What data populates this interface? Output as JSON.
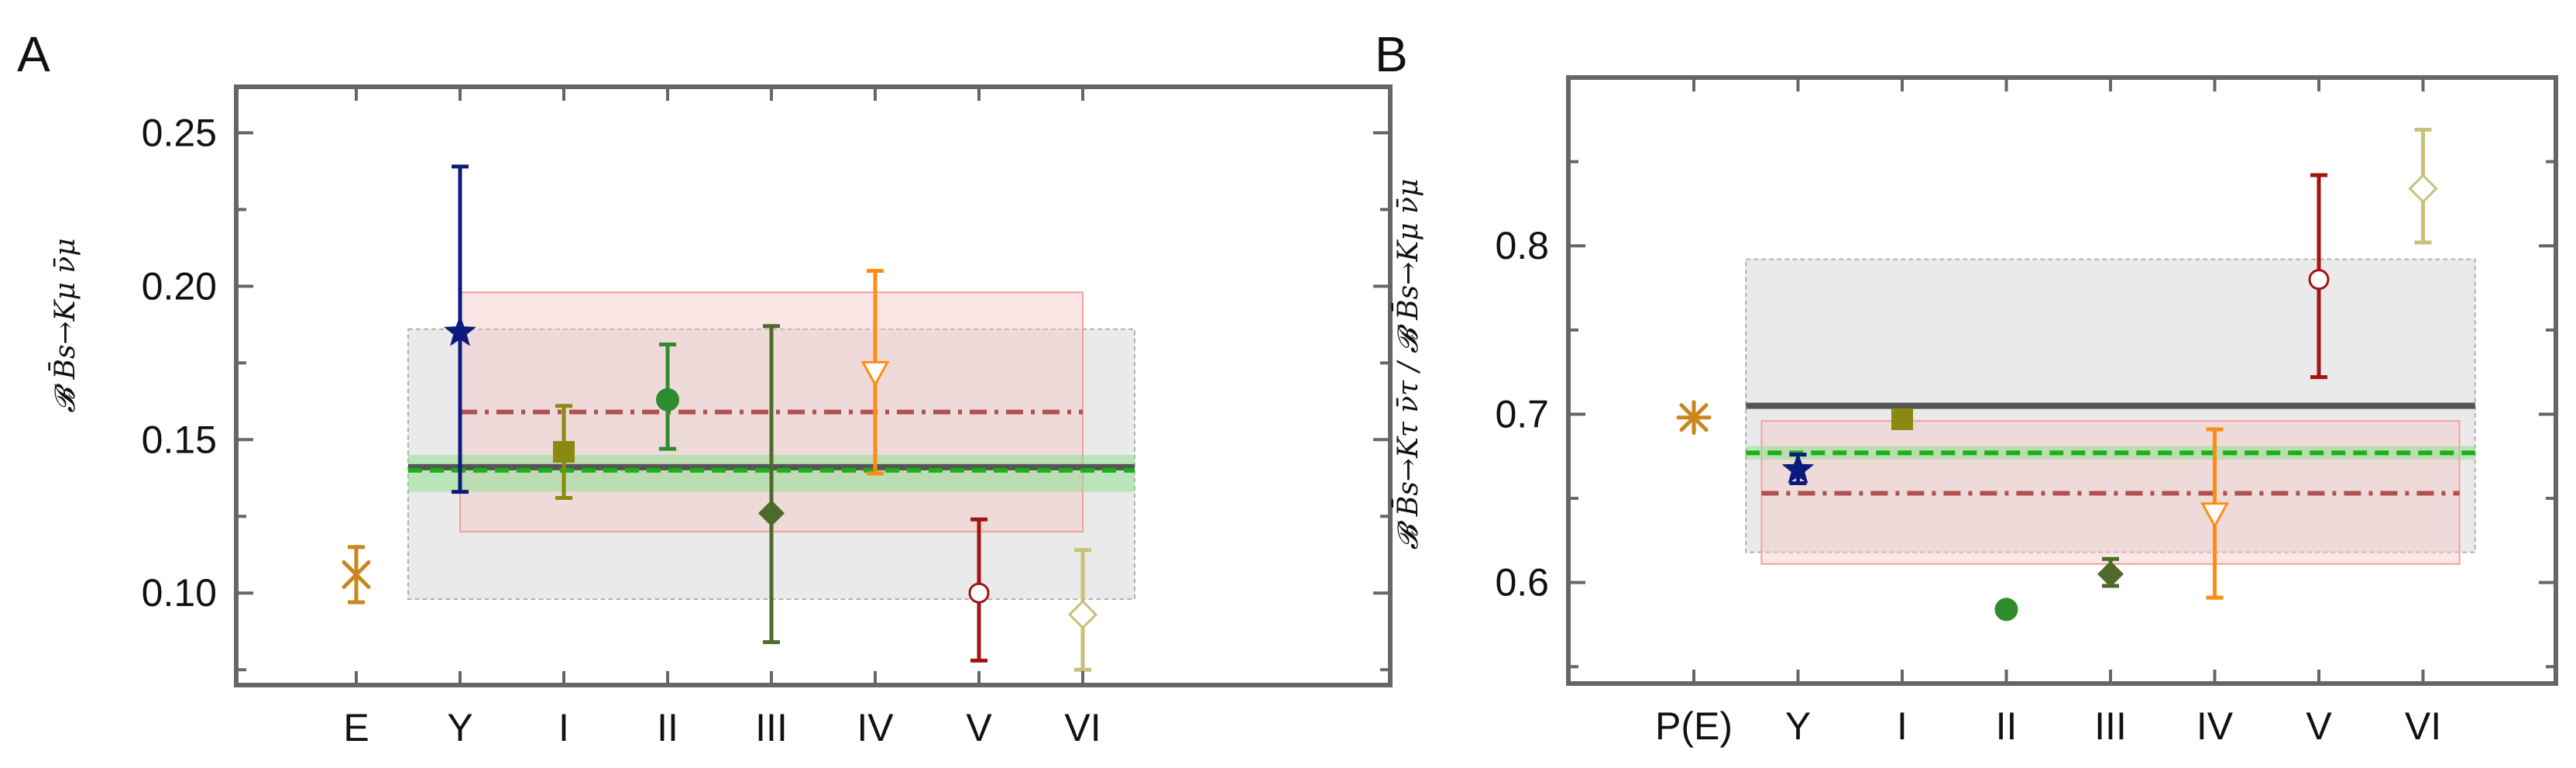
{
  "chart_data": [
    {
      "panel_label": "A",
      "type": "scatter",
      "title": "",
      "ylabel": "𝓑 B̄s→Kμ ν̄μ",
      "ylim": [
        0.07,
        0.265
      ],
      "yticks": [
        0.1,
        0.15,
        0.2,
        0.25
      ],
      "ytick_labels": [
        "0.10",
        "0.15",
        "0.20",
        "0.25"
      ],
      "categories": [
        "E",
        "Y",
        "I",
        "II",
        "III",
        "IV",
        "V",
        "VI"
      ],
      "points": [
        {
          "label": "E",
          "value": 0.106,
          "lo": 0.097,
          "hi": 0.115,
          "marker": "x",
          "color": "#c8861e"
        },
        {
          "label": "Y",
          "value": 0.185,
          "lo": 0.133,
          "hi": 0.239,
          "marker": "star",
          "color": "#0c1a7c"
        },
        {
          "label": "I",
          "value": 0.146,
          "lo": 0.131,
          "hi": 0.161,
          "marker": "square",
          "color": "#8a8a10"
        },
        {
          "label": "II",
          "value": 0.163,
          "lo": 0.147,
          "hi": 0.181,
          "marker": "circle",
          "color": "#2e8b2e"
        },
        {
          "label": "III",
          "value": 0.126,
          "lo": 0.084,
          "hi": 0.187,
          "marker": "diamond",
          "color": "#4e6a2a"
        },
        {
          "label": "IV",
          "value": 0.172,
          "lo": 0.139,
          "hi": 0.205,
          "marker": "triangle-open",
          "color": "#ff8c10"
        },
        {
          "label": "V",
          "value": 0.1,
          "lo": 0.078,
          "hi": 0.124,
          "marker": "circle-open",
          "color": "#a01414"
        },
        {
          "label": "VI",
          "value": 0.093,
          "lo": 0.075,
          "hi": 0.114,
          "marker": "diamond-open",
          "color": "#c6c27a"
        }
      ],
      "bands": [
        {
          "name": "gray",
          "center": 0.141,
          "lo": 0.098,
          "hi": 0.186,
          "from": "Y-0.5",
          "to": "VI+0.5",
          "style": "solid",
          "color": "#555555",
          "fill": "#d9d9d9"
        },
        {
          "name": "red",
          "center": 0.159,
          "lo": 0.12,
          "hi": 0.198,
          "from": "Y",
          "to": "VI",
          "style": "dashdot",
          "color": "#b05050",
          "fill": "#f7c8c8"
        },
        {
          "name": "green",
          "center": 0.14,
          "lo": 0.133,
          "hi": 0.145,
          "from": "Y-0.5",
          "to": "VI+0.5",
          "style": "dashed",
          "color": "#1ab01a",
          "fill": "#8fe08f"
        }
      ]
    },
    {
      "panel_label": "B",
      "type": "scatter",
      "title": "",
      "ylabel": "𝓑 B̄s→Kτ ν̄τ / 𝓑 B̄s→Kμ ν̄μ",
      "ylim": [
        0.54,
        0.9
      ],
      "yticks": [
        0.6,
        0.7,
        0.8
      ],
      "ytick_labels": [
        "0.6",
        "0.7",
        "0.8"
      ],
      "categories": [
        "P(E)",
        "Y",
        "I",
        "II",
        "III",
        "IV",
        "V",
        "VI"
      ],
      "points": [
        {
          "label": "P(E)",
          "value": 0.698,
          "lo": null,
          "hi": null,
          "marker": "x-star",
          "color": "#c8861e"
        },
        {
          "label": "Y",
          "value": 0.667,
          "lo": 0.659,
          "hi": 0.676,
          "marker": "star",
          "color": "#0c1a7c"
        },
        {
          "label": "I",
          "value": 0.697,
          "lo": 0.693,
          "hi": 0.701,
          "marker": "square",
          "color": "#8a8a10"
        },
        {
          "label": "II",
          "value": 0.584,
          "lo": null,
          "hi": null,
          "marker": "circle",
          "color": "#2e8b2e"
        },
        {
          "label": "III",
          "value": 0.605,
          "lo": 0.598,
          "hi": 0.614,
          "marker": "diamond",
          "color": "#4e6a2a"
        },
        {
          "label": "IV",
          "value": 0.641,
          "lo": 0.591,
          "hi": 0.691,
          "marker": "triangle-open",
          "color": "#ff8c10"
        },
        {
          "label": "V",
          "value": 0.78,
          "lo": 0.722,
          "hi": 0.842,
          "marker": "circle-open",
          "color": "#a01414"
        },
        {
          "label": "VI",
          "value": 0.834,
          "lo": 0.802,
          "hi": 0.869,
          "marker": "diamond-open",
          "color": "#c6c27a"
        }
      ],
      "bands": [
        {
          "name": "gray",
          "center": 0.705,
          "lo": 0.618,
          "hi": 0.792,
          "from": "Y-0.5",
          "to": "VI+0.5",
          "style": "solid",
          "color": "#555555",
          "fill": "#d9d9d9"
        },
        {
          "name": "red",
          "center": 0.653,
          "lo": 0.611,
          "hi": 0.696,
          "from": "Y-0.35",
          "to": "VI+0.35",
          "style": "dashdot",
          "color": "#b05050",
          "fill": "#f7c8c8"
        },
        {
          "name": "green",
          "center": 0.677,
          "lo": 0.673,
          "hi": 0.681,
          "from": "Y-0.5",
          "to": "VI+0.5",
          "style": "dashed",
          "color": "#1ab01a",
          "fill": "#8fe08f"
        }
      ]
    }
  ]
}
